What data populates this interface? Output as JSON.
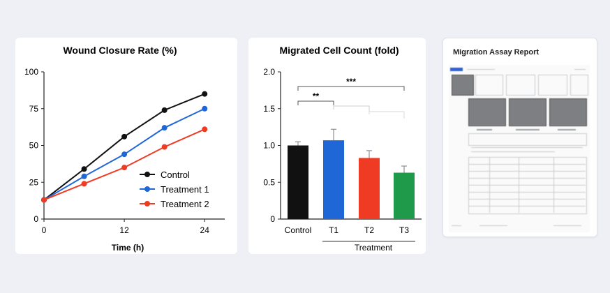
{
  "colors": {
    "control": "#111111",
    "treatment1": "#1f66d6",
    "treatment2": "#ef3b24",
    "t3": "#1f9a4a"
  },
  "line_chart": {
    "title": "Wound Closure Rate (%)",
    "xlabel": "Time (h)"
  },
  "bar_chart": {
    "title": "Migrated Cell Count (fold)",
    "group_label": "Treatment",
    "sig_labels": [
      "**",
      "***"
    ]
  },
  "report": {
    "title": "Migration Assay Report"
  },
  "chart_data": [
    {
      "type": "line",
      "title": "Wound Closure Rate (%)",
      "xlabel": "Time (h)",
      "ylabel": "",
      "x": [
        0,
        6,
        12,
        18,
        24
      ],
      "xticks": [
        "0",
        "12",
        "24"
      ],
      "yticks": [
        "0",
        "25",
        "50",
        "75",
        "100"
      ],
      "xlim": [
        0,
        27
      ],
      "ylim": [
        0,
        100
      ],
      "grid": false,
      "legend_position": "bottom-right",
      "series": [
        {
          "name": "Control",
          "color": "#111111",
          "values": [
            13,
            34,
            56,
            74,
            85
          ]
        },
        {
          "name": "Treatment 1",
          "color": "#1f66d6",
          "values": [
            13,
            29,
            44,
            62,
            75
          ]
        },
        {
          "name": "Treatment 2",
          "color": "#ef3b24",
          "values": [
            13,
            24,
            35,
            49,
            61
          ]
        }
      ]
    },
    {
      "type": "bar",
      "title": "Migrated Cell Count (fold)",
      "categories": [
        "Control",
        "T1",
        "T2",
        "T3"
      ],
      "values": [
        1.0,
        1.07,
        0.83,
        0.63
      ],
      "errors": [
        0.05,
        0.15,
        0.1,
        0.09
      ],
      "colors": [
        "#111111",
        "#1f66d6",
        "#ef3b24",
        "#1f9a4a"
      ],
      "yticks": [
        "0",
        "0.5",
        "1.0",
        "1.5",
        "2.0"
      ],
      "ylim": [
        0,
        2.0
      ],
      "group_label": "Treatment",
      "significance": [
        {
          "label": "**",
          "from": "Control",
          "to": "T1"
        },
        {
          "label": "***",
          "from": "Control",
          "to": "T3"
        }
      ]
    }
  ]
}
